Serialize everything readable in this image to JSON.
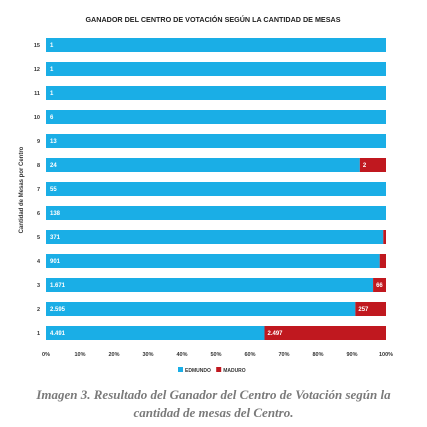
{
  "chart_data": {
    "type": "bar",
    "orientation": "horizontal",
    "stacked": "percent",
    "title": "GANADOR DEL CENTRO DE VOTACIÓN SEGÚN LA CANTIDAD DE MESAS",
    "ylabel": "Cantidad de Mesas por Centro",
    "xlabel": "",
    "categories": [
      "15",
      "12",
      "11",
      "10",
      "9",
      "8",
      "7",
      "6",
      "5",
      "4",
      "3",
      "2",
      "1"
    ],
    "xlim": [
      0,
      100
    ],
    "xticks": [
      "0%",
      "10%",
      "20%",
      "30%",
      "40%",
      "50%",
      "60%",
      "70%",
      "80%",
      "90%",
      "100%"
    ],
    "grid": false,
    "legend_position": "bottom",
    "series": [
      {
        "name": "EDMUNDO",
        "color": "#1aaee6",
        "values": [
          1,
          1,
          1,
          6,
          13,
          24,
          55,
          138,
          371,
          901,
          1671,
          2595,
          4491
        ],
        "labels": [
          "1",
          "1",
          "1",
          "6",
          "13",
          "24",
          "55",
          "138",
          "371",
          "901",
          "1.671",
          "2.595",
          "4.491"
        ]
      },
      {
        "name": "MADURO",
        "color": "#c0181f",
        "values": [
          0,
          0,
          0,
          0,
          0,
          2,
          0,
          0,
          3,
          17,
          66,
          257,
          2497
        ],
        "labels": [
          "",
          "",
          "",
          "",
          "",
          "2",
          "",
          "",
          "",
          "",
          "66",
          "257",
          "2.497"
        ]
      }
    ]
  },
  "caption": {
    "line1": "Imagen 3. Resultado del Ganador del Centro de Votación según la",
    "line2": "cantidad de mesas del Centro."
  }
}
